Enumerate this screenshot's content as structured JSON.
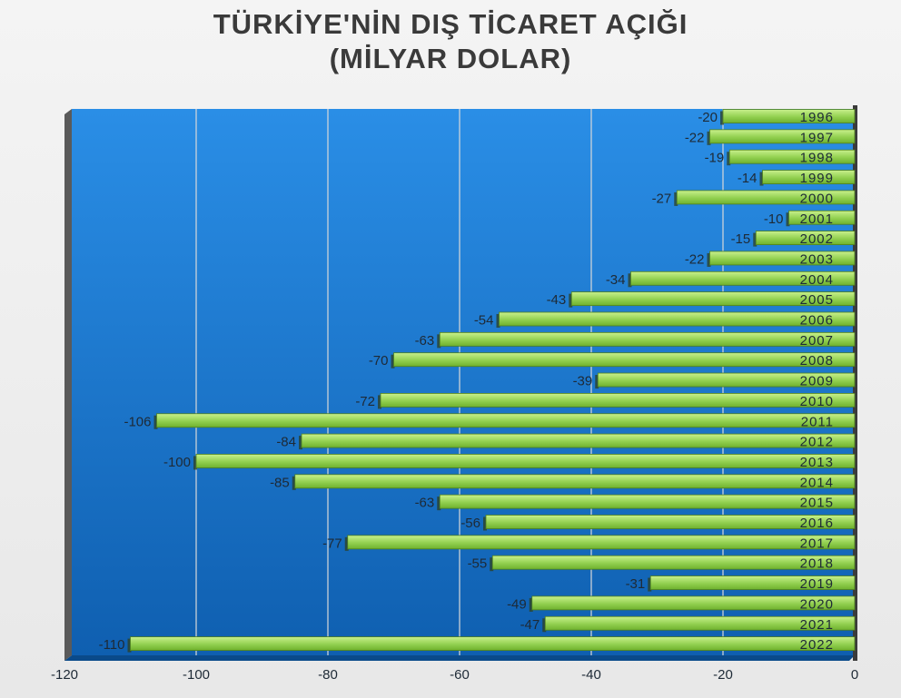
{
  "chart_data": {
    "type": "bar",
    "orientation": "horizontal",
    "title_line1": "TÜRKİYE'NİN DIŞ TİCARET AÇIĞI",
    "title_line2": "(MİLYAR DOLAR)",
    "xlabel": "",
    "ylabel": "",
    "xlim": [
      -120,
      0
    ],
    "xticks": [
      -120,
      -100,
      -80,
      -60,
      -40,
      -20,
      0
    ],
    "grid": true,
    "categories": [
      "1996",
      "1997",
      "1998",
      "1999",
      "2000",
      "2001",
      "2002",
      "2003",
      "2004",
      "2005",
      "2006",
      "2007",
      "2008",
      "2009",
      "2010",
      "2011",
      "2012",
      "2013",
      "2014",
      "2015",
      "2016",
      "2017",
      "2018",
      "2019",
      "2020",
      "2021",
      "2022"
    ],
    "values": [
      -20,
      -22,
      -19,
      -14,
      -27,
      -10,
      -15,
      -22,
      -34,
      -43,
      -54,
      -63,
      -70,
      -39,
      -72,
      -106,
      -84,
      -100,
      -85,
      -63,
      -56,
      -77,
      -55,
      -31,
      -49,
      -47,
      -110
    ],
    "bar_color": "#92d050",
    "plot_color": "#1b7ccf"
  }
}
